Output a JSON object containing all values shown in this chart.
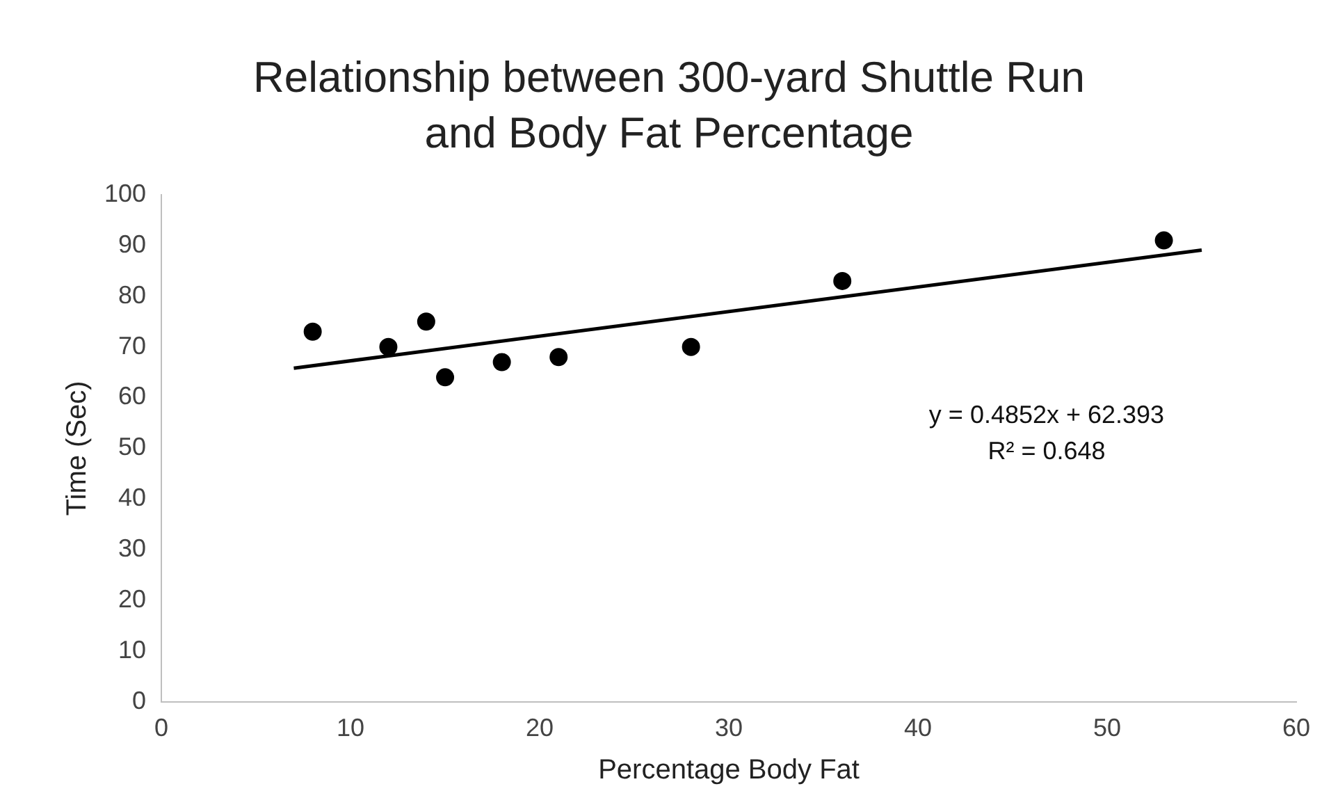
{
  "chart_data": {
    "type": "scatter",
    "title": "Relationship between 300-yard Shuttle Run and Body Fat Percentage",
    "xlabel": "Percentage Body Fat",
    "ylabel": "Time (Sec)",
    "x": [
      8,
      12,
      14,
      15,
      18,
      21,
      28,
      36,
      53
    ],
    "series": [
      {
        "color": "#000000",
        "values": [
          73,
          70,
          75,
          64,
          67,
          68,
          70,
          83,
          91
        ]
      },
      {
        "type": "line",
        "color": "#000000",
        "x": [
          7,
          55
        ],
        "values": [
          65.8,
          89.1
        ],
        "marker": "none"
      }
    ],
    "annotations": [
      "y = 0.4852x + 62.393",
      "R² = 0.648"
    ],
    "xlim": [
      0,
      60
    ],
    "xticks": [
      0,
      10,
      20,
      30,
      40,
      50,
      60
    ],
    "ylim": [
      0,
      100
    ],
    "yticks": [
      0,
      10,
      20,
      30,
      40,
      50,
      60,
      70,
      80,
      90,
      100
    ],
    "grid": false,
    "legend": false,
    "marker": "circle"
  }
}
